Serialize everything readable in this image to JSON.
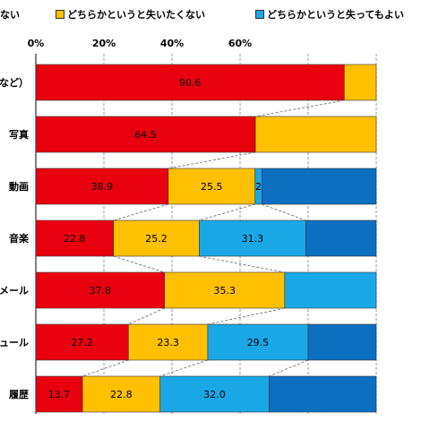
{
  "legend": [
    {
      "label": "ない",
      "color": "#e8000e"
    },
    {
      "label": "どちらかというと失いたくない",
      "color": "#ffc000"
    },
    {
      "label": "どちらかというと失ってもよい",
      "color": "#1aa7e6"
    }
  ],
  "chart_data": {
    "type": "bar",
    "orientation": "horizontal",
    "stacked": true,
    "xlim": [
      0,
      100
    ],
    "x_ticks": [
      "0%",
      "20%",
      "40%",
      "60%"
    ],
    "grid": "vertical",
    "categories": [
      "など）",
      "写真",
      "動画",
      "音楽",
      "メール",
      "ュール",
      "履歴"
    ],
    "series": [
      {
        "name": "ない",
        "color": "#e8000e",
        "values": [
          90.6,
          64.5,
          38.9,
          22.8,
          37.8,
          27.2,
          13.7
        ]
      },
      {
        "name": "どちらかというと失いたくない",
        "color": "#ffc000",
        "values": [
          null,
          null,
          25.5,
          25.2,
          35.3,
          23.3,
          22.8
        ]
      },
      {
        "name": "どちらかというと失ってもよい",
        "color": "#1aa7e6",
        "values": [
          null,
          null,
          2,
          31.3,
          null,
          29.5,
          32.0
        ]
      }
    ],
    "extra_color": "#0c6fc0",
    "value_labels": [
      [
        "90.6",
        "",
        ""
      ],
      [
        "64.5",
        "",
        ""
      ],
      [
        "38.9",
        "25.5",
        "2"
      ],
      [
        "22.8",
        "25.2",
        "31.3"
      ],
      [
        "37.8",
        "35.3",
        ""
      ],
      [
        "27.2",
        "23.3",
        "29.5"
      ],
      [
        "13.7",
        "22.8",
        "32.0"
      ]
    ]
  }
}
